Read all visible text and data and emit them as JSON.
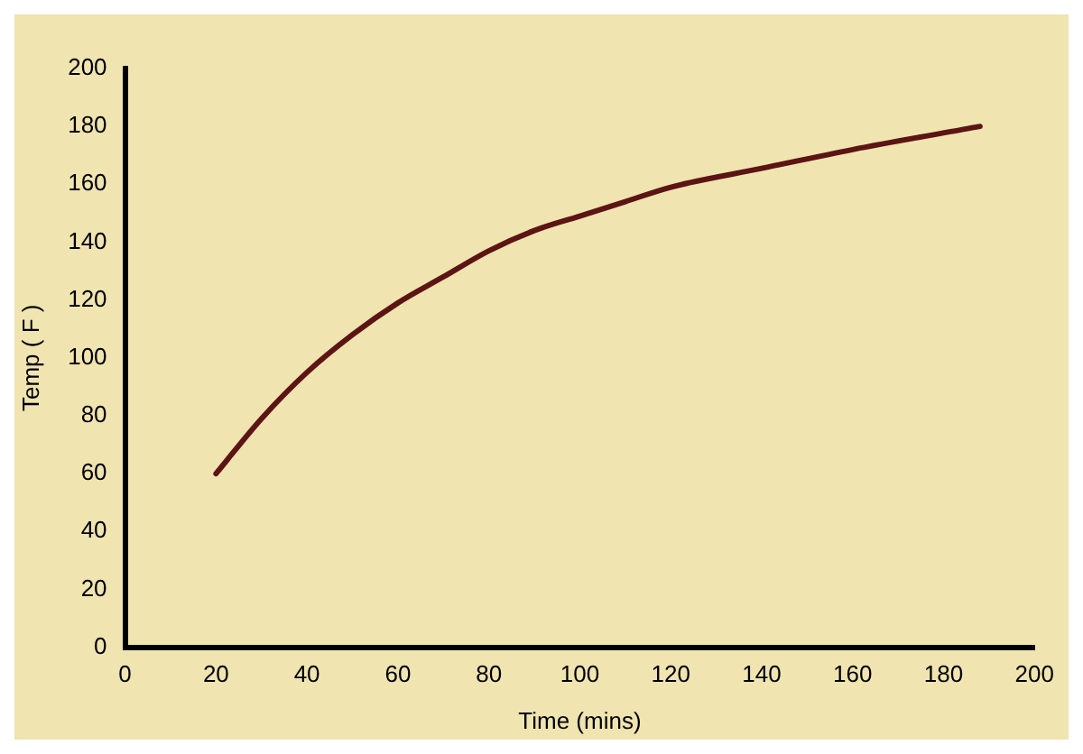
{
  "chart_data": {
    "type": "line",
    "xlabel": "Time (mins)",
    "ylabel": "Temp ( F )",
    "series": [
      {
        "color": "#5c1414",
        "x": [
          20,
          30,
          40,
          50,
          60,
          70,
          80,
          90,
          100,
          110,
          120,
          140,
          160,
          188
        ],
        "values": [
          60,
          79,
          95,
          108,
          119,
          128,
          137,
          144,
          149,
          154,
          159,
          165.5,
          172,
          180
        ]
      }
    ],
    "xlim": [
      0,
      200
    ],
    "xticks": [
      0,
      20,
      40,
      60,
      80,
      100,
      120,
      140,
      160,
      180,
      200
    ],
    "ylim": [
      0,
      200
    ],
    "yticks": [
      0,
      20,
      40,
      60,
      80,
      100,
      120,
      140,
      160,
      180,
      200
    ],
    "grid": false,
    "legend": false,
    "marker": "none",
    "line_style": "solid"
  }
}
